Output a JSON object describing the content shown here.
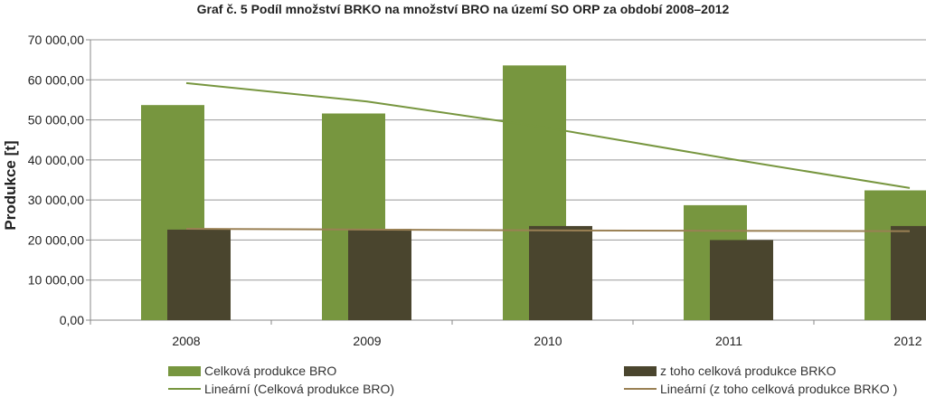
{
  "chart_data": {
    "type": "bar",
    "title": "Graf č. 5 Podíl množství BRKO na množství BRO na území SO ORP za období 2008–2012",
    "ylabel": "Produkce [t]",
    "xlabel": "",
    "categories": [
      "2008",
      "2009",
      "2010",
      "2011",
      "2012"
    ],
    "ylim": [
      0,
      70000
    ],
    "y_ticks": [
      0,
      10000,
      20000,
      30000,
      40000,
      50000,
      60000,
      70000
    ],
    "y_tick_labels": [
      "0,00",
      "10 000,00",
      "20 000,00",
      "30 000,00",
      "40 000,00",
      "50 000,00",
      "60 000,00",
      "70 000,00"
    ],
    "grid": true,
    "legend_position": "bottom",
    "series": [
      {
        "name": "Celková produkce BRO",
        "color": "#77963f",
        "values": [
          53700,
          51600,
          63600,
          28700,
          32400
        ]
      },
      {
        "name": "z toho celková produkce BRKO",
        "color": "#4a452e",
        "values": [
          22600,
          22800,
          23500,
          20000,
          23500
        ]
      }
    ],
    "trendlines": [
      {
        "name": "Lineární (Celková produkce BRO)",
        "color": "#77963f",
        "values": [
          59200,
          54600,
          48000,
          40300,
          33000
        ]
      },
      {
        "name": "Lineární (z toho celková produkce BRKO )",
        "color": "#9a8054",
        "values": [
          22800,
          22600,
          22400,
          22300,
          22200
        ]
      }
    ]
  }
}
